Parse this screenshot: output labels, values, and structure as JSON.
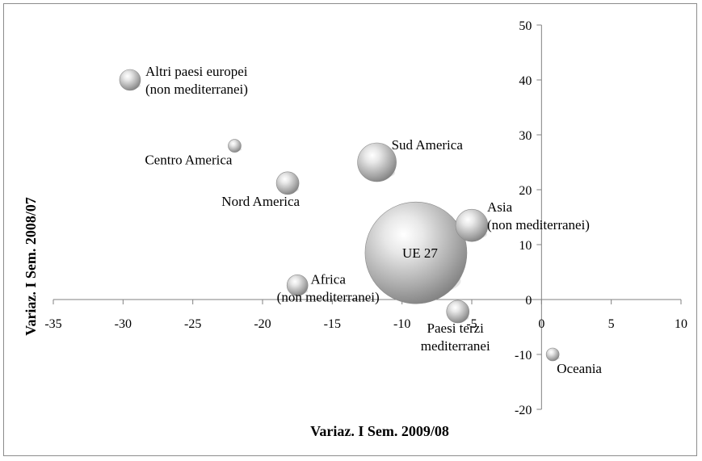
{
  "chart_data": {
    "type": "bubble",
    "xlabel": "Variaz. I Sem. 2009/08",
    "ylabel": "Variaz. I Sem. 2008/07",
    "xlim": [
      -35,
      10
    ],
    "ylim": [
      -20,
      50
    ],
    "xticks": [
      -35,
      -30,
      -25,
      -20,
      -15,
      -10,
      -5,
      0,
      5,
      10
    ],
    "yticks": [
      -20,
      -10,
      0,
      10,
      20,
      30,
      40,
      50
    ],
    "grid": false,
    "legend": "none",
    "bubble_color": "#b5b5b5",
    "points": [
      {
        "label": [
          "Altri paesi europei",
          "(non mediterranei)"
        ],
        "x": -29.5,
        "y": 40,
        "size": 13
      },
      {
        "label": [
          "Centro America"
        ],
        "x": -22,
        "y": 28,
        "size": 8
      },
      {
        "label": [
          "Sud America"
        ],
        "x": -11.8,
        "y": 25,
        "size": 24
      },
      {
        "label": [
          "Nord America"
        ],
        "x": -18.2,
        "y": 21.2,
        "size": 14
      },
      {
        "label": [
          "Asia",
          "(non mediterranei)"
        ],
        "x": -5,
        "y": 13.5,
        "size": 20
      },
      {
        "label": [
          "UE 27"
        ],
        "x": -9,
        "y": 8.5,
        "size": 63
      },
      {
        "label": [
          "Africa",
          "(non mediterranei)"
        ],
        "x": -17.5,
        "y": 2.6,
        "size": 13
      },
      {
        "label": [
          "Paesi terzi",
          "mediterranei"
        ],
        "x": -6,
        "y": -2.2,
        "size": 14
      },
      {
        "label": [
          "Oceania"
        ],
        "x": 0.8,
        "y": -10,
        "size": 8
      }
    ]
  }
}
